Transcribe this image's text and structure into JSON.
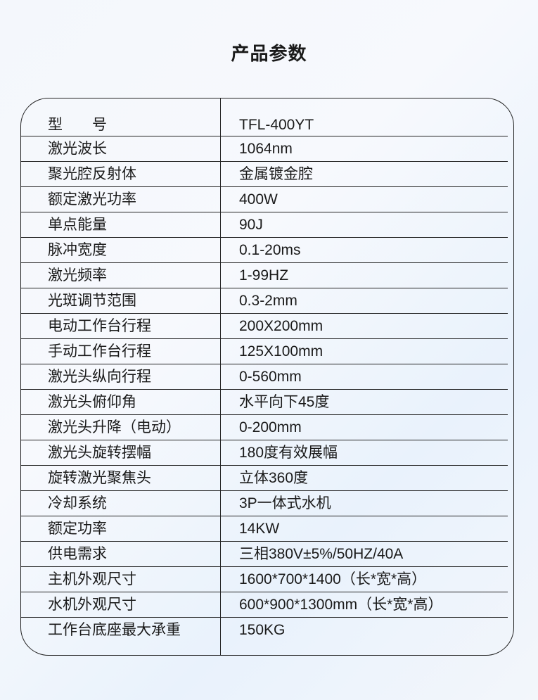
{
  "title": "产品参数",
  "rows": [
    {
      "key": "型　　号",
      "value": "TFL-400YT"
    },
    {
      "key": "激光波长",
      "value": "1064nm"
    },
    {
      "key": "聚光腔反射体",
      "value": "金属镀金腔"
    },
    {
      "key": "额定激光功率",
      "value": "400W"
    },
    {
      "key": "单点能量",
      "value": "90J"
    },
    {
      "key": "脉冲宽度",
      "value": "0.1-20ms"
    },
    {
      "key": "激光频率",
      "value": "1-99HZ"
    },
    {
      "key": "光斑调节范围",
      "value": "0.3-2mm"
    },
    {
      "key": "电动工作台行程",
      "value": "200X200mm"
    },
    {
      "key": "手动工作台行程",
      "value": "125X100mm"
    },
    {
      "key": "激光头纵向行程",
      "value": "0-560mm"
    },
    {
      "key": "激光头俯仰角",
      "value": "水平向下45度"
    },
    {
      "key": "激光头升降（电动）",
      "value": "0-200mm"
    },
    {
      "key": "激光头旋转摆幅",
      "value": "180度有效展幅"
    },
    {
      "key": "旋转激光聚焦头",
      "value": "立体360度"
    },
    {
      "key": "冷却系统",
      "value": "3P一体式水机"
    },
    {
      "key": "额定功率",
      "value": "14KW"
    },
    {
      "key": "供电需求",
      "value": "三相380V±5%/50HZ/40A"
    },
    {
      "key": "主机外观尺寸",
      "value": "1600*700*1400（长*宽*高）"
    },
    {
      "key": "水机外观尺寸",
      "value": "600*900*1300mm（长*宽*高）"
    },
    {
      "key": "工作台底座最大承重",
      "value": "150KG"
    }
  ]
}
